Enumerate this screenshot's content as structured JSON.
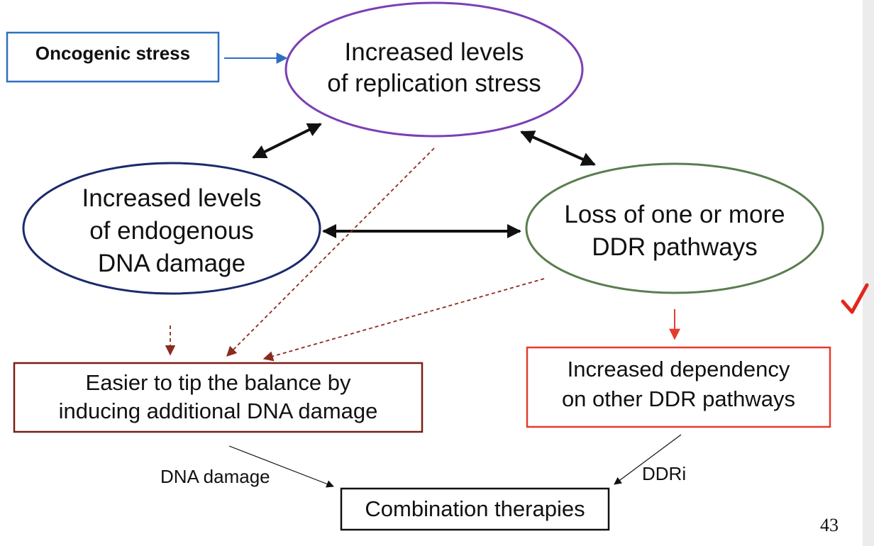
{
  "nodes": {
    "oncogenic_stress": "Oncogenic stress",
    "replication_stress": [
      "Increased levels",
      "of replication stress"
    ],
    "endogenous_damage": [
      "Increased levels",
      "of endogenous",
      "DNA damage"
    ],
    "ddr_loss": [
      "Loss of one or more",
      "DDR pathways"
    ],
    "tip_balance": [
      "Easier to tip the balance by",
      "inducing additional DNA damage"
    ],
    "dependency": [
      "Increased dependency",
      "on other DDR pathways"
    ],
    "combination": "Combination therapies"
  },
  "edge_labels": {
    "dna_damage": "DNA damage",
    "ddri": "DDRi"
  },
  "page_number": "43",
  "marks": {
    "check_icon": "checkmark-icon"
  },
  "colors": {
    "oncogenic_border": "#2f6fc0",
    "replication_border": "#7b3fb5",
    "endogenous_border": "#1b2a6b",
    "ddr_border": "#5a7d4f",
    "tip_border": "#7a1f14",
    "dependency_border": "#e53c2e",
    "dashed_arrow": "#8b2a1f",
    "check": "#e2261b"
  }
}
